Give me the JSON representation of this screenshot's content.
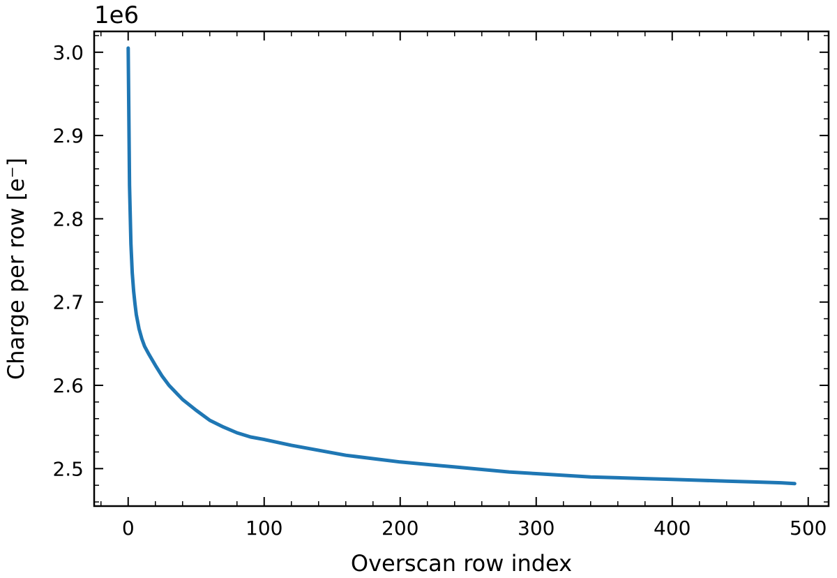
{
  "chart_data": {
    "type": "line",
    "xlabel": "Overscan row index",
    "ylabel": "Charge per row [e⁻]",
    "y_offset_label": "1e6",
    "y_scale_factor": 1000000,
    "xlim": [
      -25,
      515
    ],
    "ylim": [
      2.455,
      3.025
    ],
    "x_ticks": [
      0,
      100,
      200,
      300,
      400,
      500
    ],
    "x_tick_labels": [
      "0",
      "100",
      "200",
      "300",
      "400",
      "500"
    ],
    "y_ticks": [
      2.5,
      2.6,
      2.7,
      2.8,
      2.9,
      3.0
    ],
    "y_tick_labels": [
      "2.5",
      "2.6",
      "2.7",
      "2.8",
      "2.9",
      "3.0"
    ],
    "grid": false,
    "color": "#1f77b4",
    "series": [
      {
        "x": [
          0,
          1,
          2,
          3,
          4,
          5,
          6,
          8,
          10,
          12,
          15,
          20,
          25,
          30,
          40,
          50,
          60,
          70,
          80,
          90,
          100,
          120,
          140,
          160,
          180,
          200,
          220,
          240,
          260,
          280,
          300,
          320,
          340,
          360,
          380,
          400,
          420,
          440,
          460,
          480,
          490
        ],
        "y": [
          3.005,
          2.84,
          2.77,
          2.735,
          2.713,
          2.698,
          2.685,
          2.668,
          2.656,
          2.647,
          2.638,
          2.624,
          2.611,
          2.6,
          2.583,
          2.57,
          2.558,
          2.55,
          2.543,
          2.538,
          2.535,
          2.528,
          2.522,
          2.516,
          2.512,
          2.508,
          2.505,
          2.502,
          2.499,
          2.496,
          2.494,
          2.492,
          2.49,
          2.489,
          2.488,
          2.487,
          2.486,
          2.485,
          2.484,
          2.483,
          2.482
        ]
      }
    ]
  }
}
